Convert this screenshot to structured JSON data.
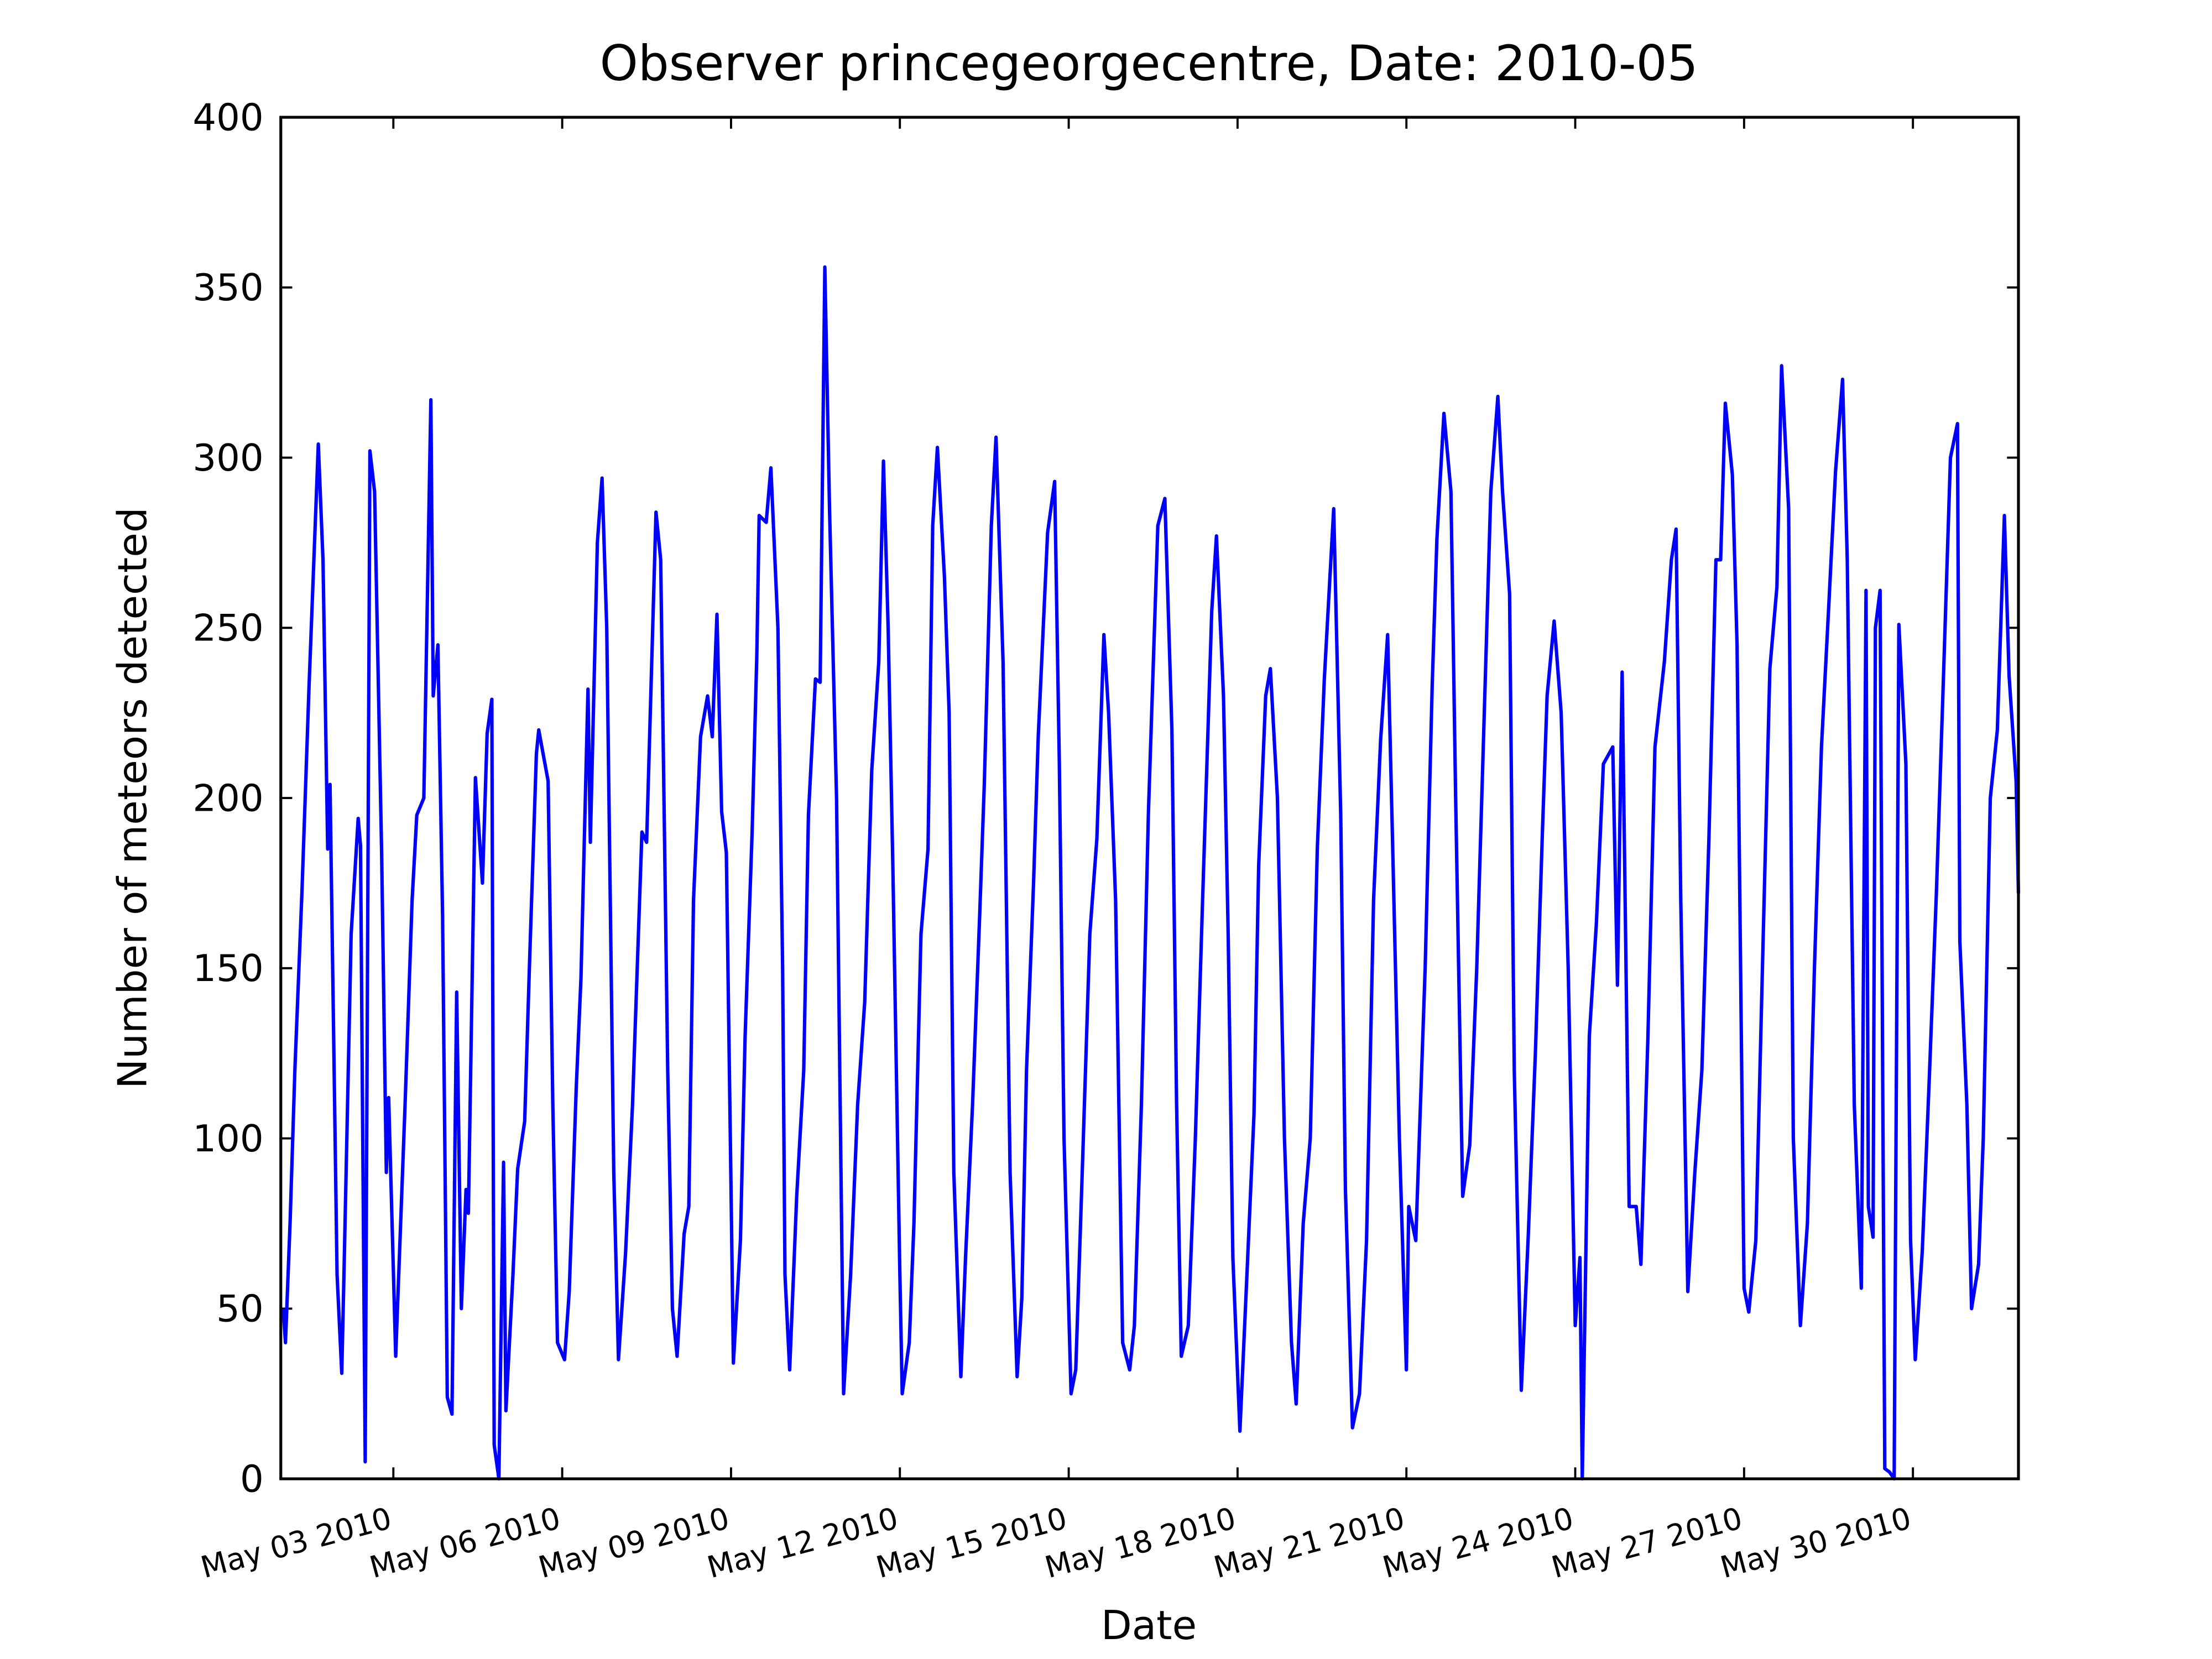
{
  "chart_data": {
    "type": "line",
    "title": "Observer princegeorgecentre, Date: 2010-05",
    "xlabel": "Date",
    "ylabel": "Number of meteors detected",
    "xlim": [
      "2010-05-01 00:00",
      "2010-05-31 21:00"
    ],
    "ylim": [
      0,
      400
    ],
    "yticks": [
      0,
      50,
      100,
      150,
      200,
      250,
      300,
      350,
      400
    ],
    "xticks": [
      {
        "value": "2010-05-03 00:00",
        "label": "May 03 2010"
      },
      {
        "value": "2010-05-06 00:00",
        "label": "May 06 2010"
      },
      {
        "value": "2010-05-09 00:00",
        "label": "May 09 2010"
      },
      {
        "value": "2010-05-12 00:00",
        "label": "May 12 2010"
      },
      {
        "value": "2010-05-15 00:00",
        "label": "May 15 2010"
      },
      {
        "value": "2010-05-18 00:00",
        "label": "May 18 2010"
      },
      {
        "value": "2010-05-21 00:00",
        "label": "May 21 2010"
      },
      {
        "value": "2010-05-24 00:00",
        "label": "May 24 2010"
      },
      {
        "value": "2010-05-27 00:00",
        "label": "May 27 2010"
      },
      {
        "value": "2010-05-30 00:00",
        "label": "May 30 2010"
      }
    ],
    "x": [
      "2010-05-01 01:00",
      "2010-05-01 02:00",
      "2010-05-01 04:00",
      "2010-05-01 06:00",
      "2010-05-01 09:00",
      "2010-05-01 12:00",
      "2010-05-01 16:00",
      "2010-05-01 18:00",
      "2010-05-01 20:00",
      "2010-05-01 21:00",
      "2010-05-02 00:00",
      "2010-05-02 02:00",
      "2010-05-02 03:00",
      "2010-05-02 06:00",
      "2010-05-02 09:00",
      "2010-05-02 10:00",
      "2010-05-02 12:00",
      "2010-05-02 14:00",
      "2010-05-02 16:00",
      "2010-05-02 19:00",
      "2010-05-02 21:00",
      "2010-05-02 22:00",
      "2010-05-03 01:00",
      "2010-05-03 05:00",
      "2010-05-03 08:00",
      "2010-05-03 10:00",
      "2010-05-03 13:00",
      "2010-05-03 16:00",
      "2010-05-03 17:00",
      "2010-05-03 19:00",
      "2010-05-03 21:00",
      "2010-05-03 23:00",
      "2010-05-04 01:00",
      "2010-05-04 03:00",
      "2010-05-04 05:00",
      "2010-05-04 07:00",
      "2010-05-04 08:00",
      "2010-05-04 11:00",
      "2010-05-04 14:00",
      "2010-05-04 16:00",
      "2010-05-04 18:00",
      "2010-05-04 19:00",
      "2010-05-04 21:00",
      "2010-05-04 23:00",
      "2010-05-05 00:00",
      "2010-05-05 03:00",
      "2010-05-05 05:00",
      "2010-05-05 08:00",
      "2010-05-05 10:00",
      "2010-05-05 13:00",
      "2010-05-05 14:00",
      "2010-05-05 18:00",
      "2010-05-05 20:00",
      "2010-05-05 22:00",
      "2010-05-06 01:00",
      "2010-05-06 03:00",
      "2010-05-06 06:00",
      "2010-05-06 08:00",
      "2010-05-06 11:00",
      "2010-05-06 12:00",
      "2010-05-06 15:00",
      "2010-05-06 17:00",
      "2010-05-06 19:00",
      "2010-05-06 22:00",
      "2010-05-07 00:00",
      "2010-05-07 03:00",
      "2010-05-07 06:00",
      "2010-05-07 10:00",
      "2010-05-07 12:00",
      "2010-05-07 16:00",
      "2010-05-07 18:00",
      "2010-05-07 21:00",
      "2010-05-07 23:00",
      "2010-05-08 01:00",
      "2010-05-08 04:00",
      "2010-05-08 06:00",
      "2010-05-08 08:00",
      "2010-05-08 11:00",
      "2010-05-08 14:00",
      "2010-05-08 16:00",
      "2010-05-08 18:00",
      "2010-05-08 20:00",
      "2010-05-08 22:00",
      "2010-05-09 00:00",
      "2010-05-09 01:00",
      "2010-05-09 04:00",
      "2010-05-09 06:00",
      "2010-05-09 09:00",
      "2010-05-09 11:00",
      "2010-05-09 12:00",
      "2010-05-09 15:00",
      "2010-05-09 17:00",
      "2010-05-09 20:00",
      "2010-05-09 22:00",
      "2010-05-09 23:00",
      "2010-05-10 01:00",
      "2010-05-10 04:00",
      "2010-05-10 07:00",
      "2010-05-10 09:00",
      "2010-05-10 12:00",
      "2010-05-10 14:00",
      "2010-05-10 16:00",
      "2010-05-10 18:00",
      "2010-05-10 21:00",
      "2010-05-11 00:00",
      "2010-05-11 03:00",
      "2010-05-11 06:00",
      "2010-05-11 09:00",
      "2010-05-11 12:00",
      "2010-05-11 15:00",
      "2010-05-11 17:00",
      "2010-05-11 19:00",
      "2010-05-11 21:00",
      "2010-05-12 00:00",
      "2010-05-12 01:00",
      "2010-05-12 04:00",
      "2010-05-12 06:00",
      "2010-05-12 09:00",
      "2010-05-12 12:00",
      "2010-05-12 14:00",
      "2010-05-12 16:00",
      "2010-05-12 19:00",
      "2010-05-12 21:00",
      "2010-05-12 23:00",
      "2010-05-13 02:00",
      "2010-05-13 04:00",
      "2010-05-13 07:00",
      "2010-05-13 10:00",
      "2010-05-13 12:00",
      "2010-05-13 15:00",
      "2010-05-13 17:00",
      "2010-05-13 20:00",
      "2010-05-13 23:00",
      "2010-05-14 02:00",
      "2010-05-14 04:00",
      "2010-05-14 06:00",
      "2010-05-14 09:00",
      "2010-05-14 11:00",
      "2010-05-14 15:00",
      "2010-05-14 18:00",
      "2010-05-14 20:00",
      "2010-05-14 22:00",
      "2010-05-15 01:00",
      "2010-05-15 03:00",
      "2010-05-15 06:00",
      "2010-05-15 09:00",
      "2010-05-15 12:00",
      "2010-05-15 15:00",
      "2010-05-15 17:00",
      "2010-05-15 20:00",
      "2010-05-15 23:00",
      "2010-05-16 02:00",
      "2010-05-16 04:00",
      "2010-05-16 07:00",
      "2010-05-16 10:00",
      "2010-05-16 14:00",
      "2010-05-16 17:00",
      "2010-05-16 20:00",
      "2010-05-16 22:00",
      "2010-05-17 00:00",
      "2010-05-17 03:00",
      "2010-05-17 06:00",
      "2010-05-17 09:00",
      "2010-05-17 13:00",
      "2010-05-17 15:00",
      "2010-05-17 18:00",
      "2010-05-17 20:00",
      "2010-05-17 22:00",
      "2010-05-18 01:00",
      "2010-05-18 04:00",
      "2010-05-18 07:00",
      "2010-05-18 09:00",
      "2010-05-18 12:00",
      "2010-05-18 14:00",
      "2010-05-18 17:00",
      "2010-05-18 20:00",
      "2010-05-18 23:00",
      "2010-05-19 01:00",
      "2010-05-19 04:00",
      "2010-05-19 07:00",
      "2010-05-19 10:00",
      "2010-05-19 13:00",
      "2010-05-19 17:00",
      "2010-05-19 20:00",
      "2010-05-19 22:00",
      "2010-05-20 01:00",
      "2010-05-20 04:00",
      "2010-05-20 07:00",
      "2010-05-20 10:00",
      "2010-05-20 13:00",
      "2010-05-20 16:00",
      "2010-05-20 18:00",
      "2010-05-20 21:00",
      "2010-05-21 00:00",
      "2010-05-21 01:00",
      "2010-05-21 04:00",
      "2010-05-21 08:00",
      "2010-05-21 11:00",
      "2010-05-21 13:00",
      "2010-05-21 16:00",
      "2010-05-21 19:00",
      "2010-05-21 21:00",
      "2010-05-22 00:00",
      "2010-05-22 03:00",
      "2010-05-22 06:00",
      "2010-05-22 09:00",
      "2010-05-22 12:00",
      "2010-05-22 15:00",
      "2010-05-22 17:00",
      "2010-05-22 20:00",
      "2010-05-22 22:00",
      "2010-05-23 01:00",
      "2010-05-23 04:00",
      "2010-05-23 07:00",
      "2010-05-23 10:00",
      "2010-05-23 12:00",
      "2010-05-23 15:00",
      "2010-05-23 18:00",
      "2010-05-23 21:00",
      "2010-05-24 00:00",
      "2010-05-24 02:00",
      "2010-05-24 03:00",
      "2010-05-24 06:00",
      "2010-05-24 09:00",
      "2010-05-24 12:00",
      "2010-05-24 16:00",
      "2010-05-24 18:00",
      "2010-05-24 20:00",
      "2010-05-24 23:00",
      "2010-05-25 02:00",
      "2010-05-25 04:00",
      "2010-05-25 07:00",
      "2010-05-25 10:00",
      "2010-05-25 14:00",
      "2010-05-25 17:00",
      "2010-05-25 19:00",
      "2010-05-25 21:00",
      "2010-05-26 00:00",
      "2010-05-26 03:00",
      "2010-05-26 06:00",
      "2010-05-26 09:00",
      "2010-05-26 12:00",
      "2010-05-26 14:00",
      "2010-05-26 16:00",
      "2010-05-26 19:00",
      "2010-05-26 21:00",
      "2010-05-27 00:00",
      "2010-05-27 02:00",
      "2010-05-27 05:00",
      "2010-05-27 08:00",
      "2010-05-27 11:00",
      "2010-05-27 14:00",
      "2010-05-27 16:00",
      "2010-05-27 19:00",
      "2010-05-27 21:00",
      "2010-05-28 00:00",
      "2010-05-28 03:00",
      "2010-05-28 06:00",
      "2010-05-28 09:00",
      "2010-05-28 12:00",
      "2010-05-28 15:00",
      "2010-05-28 18:00",
      "2010-05-28 20:00",
      "2010-05-28 23:00",
      "2010-05-29 02:00",
      "2010-05-29 04:00",
      "2010-05-29 05:00",
      "2010-05-29 07:00",
      "2010-05-29 08:00",
      "2010-05-29 10:00",
      "2010-05-29 12:00",
      "2010-05-29 14:00",
      "2010-05-29 16:00",
      "2010-05-29 18:00",
      "2010-05-29 21:00",
      "2010-05-29 23:00",
      "2010-05-30 01:00",
      "2010-05-30 04:00",
      "2010-05-30 07:00",
      "2010-05-30 10:00",
      "2010-05-30 13:00",
      "2010-05-30 16:00",
      "2010-05-30 19:00",
      "2010-05-30 20:00",
      "2010-05-30 23:00",
      "2010-05-31 01:00",
      "2010-05-31 04:00",
      "2010-05-31 06:00",
      "2010-05-31 09:00",
      "2010-05-31 12:00",
      "2010-05-31 15:00",
      "2010-05-31 17:00",
      "2010-05-31 20:00",
      "2010-05-31 21:00"
    ],
    "series": [
      {
        "color": "#0000ff",
        "values": [
          50,
          40,
          76,
          120,
          172,
          232,
          304,
          270,
          185,
          204,
          60,
          31,
          62,
          160,
          194,
          186,
          5,
          302,
          290,
          184,
          90,
          112,
          36,
          110,
          170,
          195,
          200,
          317,
          230,
          245,
          165,
          24,
          19,
          143,
          50,
          85,
          78,
          206,
          175,
          219,
          229,
          10,
          0,
          93,
          20,
          60,
          91,
          105,
          150,
          213,
          220,
          205,
          110,
          40,
          35,
          55,
          115,
          147,
          232,
          187,
          275,
          294,
          250,
          90,
          35,
          66,
          110,
          190,
          187,
          284,
          270,
          120,
          50,
          36,
          72,
          80,
          170,
          218,
          230,
          218,
          254,
          196,
          184,
          85,
          34,
          70,
          130,
          190,
          242,
          283,
          281,
          297,
          250,
          150,
          60,
          32,
          83,
          120,
          195,
          235,
          234,
          356,
          285,
          200,
          25,
          60,
          110,
          140,
          208,
          240,
          299,
          250,
          180,
          60,
          25,
          40,
          75,
          160,
          185,
          280,
          303,
          265,
          225,
          90,
          30,
          65,
          110,
          165,
          204,
          280,
          306,
          240,
          90,
          30,
          53,
          120,
          175,
          218,
          278,
          293,
          210,
          100,
          25,
          32,
          95,
          160,
          188,
          248,
          225,
          170,
          40,
          32,
          45,
          110,
          196,
          280,
          288,
          220,
          110,
          36,
          45,
          100,
          168,
          255,
          277,
          230,
          160,
          65,
          14,
          60,
          107,
          180,
          230,
          238,
          200,
          100,
          40,
          22,
          75,
          100,
          185,
          235,
          285,
          195,
          85,
          15,
          25,
          70,
          170,
          217,
          248,
          190,
          100,
          32,
          80,
          70,
          150,
          233,
          276,
          313,
          290,
          200,
          83,
          98,
          150,
          220,
          290,
          318,
          290,
          260,
          120,
          26,
          72,
          125,
          190,
          230,
          252,
          225,
          150,
          45,
          65,
          0,
          130,
          163,
          210,
          215,
          145,
          237,
          80,
          80,
          63,
          130,
          215,
          240,
          270,
          279,
          170,
          55,
          90,
          120,
          188,
          270,
          270,
          316,
          295,
          245,
          56,
          49,
          70,
          155,
          238,
          262,
          327,
          285,
          100,
          45,
          75,
          150,
          215,
          255,
          296,
          323,
          270,
          110,
          56,
          261,
          80,
          71,
          250,
          261,
          3,
          2,
          0,
          251,
          210,
          70,
          35,
          67,
          118,
          172,
          235,
          300,
          310,
          158,
          110,
          50,
          63,
          100,
          200,
          220,
          283,
          236,
          205,
          172
        ]
      }
    ]
  }
}
